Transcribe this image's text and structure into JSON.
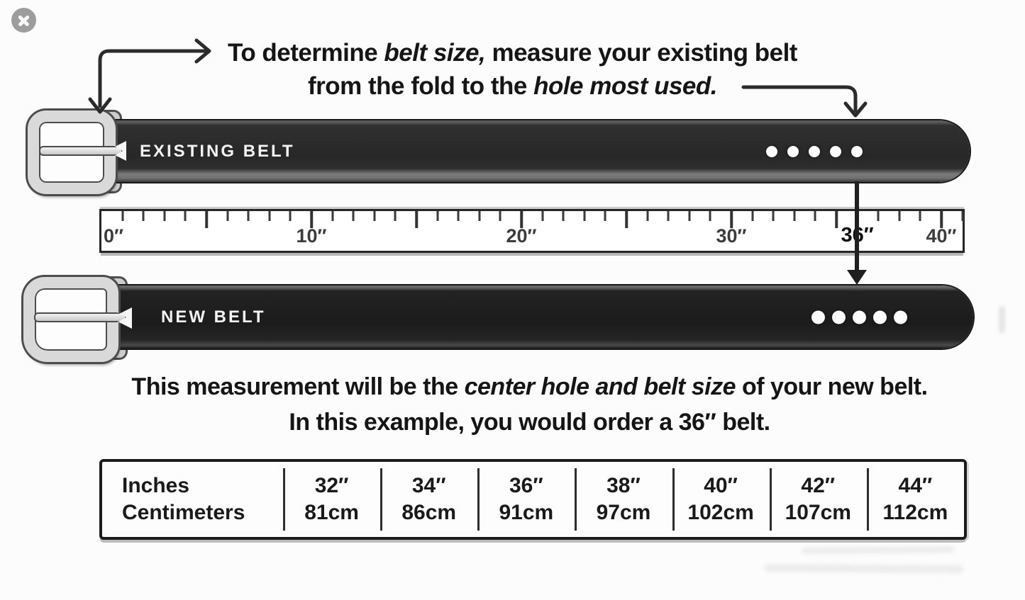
{
  "close_button": {
    "label": "close"
  },
  "top_note": {
    "line1_prefix": "To determine ",
    "line1_em": "belt size,",
    "line1_suffix": " measure your existing belt",
    "line2_prefix": "from the fold to the ",
    "line2_em": "hole most used."
  },
  "existing_belt": {
    "label": "EXISTING BELT",
    "holes": 5
  },
  "new_belt": {
    "label": "NEW BELT",
    "holes": 5
  },
  "ruler": {
    "unit": "inches",
    "min_inches": 0,
    "max_inches": 40,
    "tick_every_inches": 1,
    "major_every_inches": 5,
    "highlight_inches": 36,
    "labels": [
      {
        "inches": 0,
        "text": "0″"
      },
      {
        "inches": 10,
        "text": "10″"
      },
      {
        "inches": 20,
        "text": "20″"
      },
      {
        "inches": 30,
        "text": "30″"
      },
      {
        "inches": 36,
        "text": "36″"
      },
      {
        "inches": 40,
        "text": "40″"
      }
    ]
  },
  "bottom_note": {
    "line1_prefix": "This measurement will be the ",
    "line1_em": "center hole and belt size",
    "line1_suffix": " of your new belt.",
    "line2": "In this example, you would order a 36″ belt."
  },
  "size_table": {
    "row_labels": [
      "Inches",
      "Centimeters"
    ],
    "columns": [
      {
        "inches": "32″",
        "cm": "81cm"
      },
      {
        "inches": "34″",
        "cm": "86cm"
      },
      {
        "inches": "36″",
        "cm": "91cm"
      },
      {
        "inches": "38″",
        "cm": "97cm"
      },
      {
        "inches": "40″",
        "cm": "102cm"
      },
      {
        "inches": "42″",
        "cm": "107cm"
      },
      {
        "inches": "44″",
        "cm": "112cm"
      }
    ]
  },
  "colors": {
    "belt_dark": "#2e2e2e",
    "belt_darker": "#1f1f1f",
    "metal": "#d9d9d9",
    "arrow": "#2b2b2b"
  }
}
